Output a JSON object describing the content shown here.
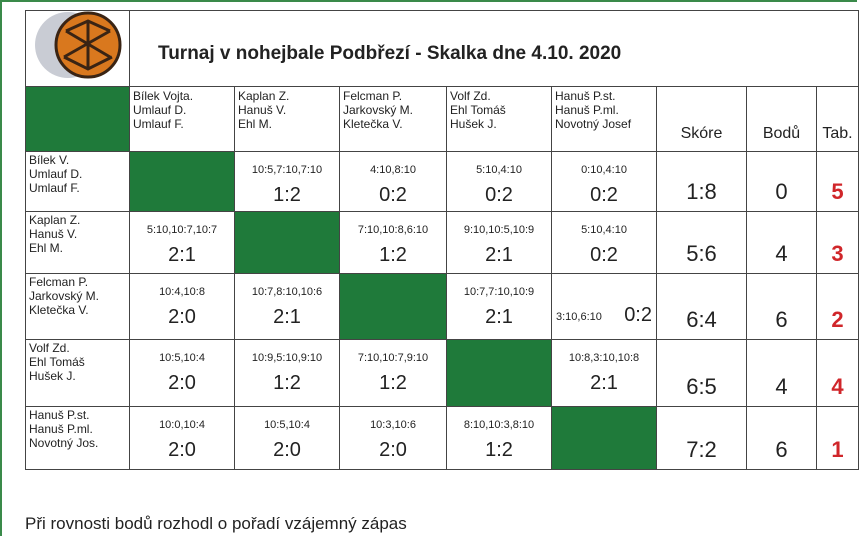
{
  "header": {
    "title": "Turnaj v nohejbale Podbřezí - Skalka dne 4.10. 2020"
  },
  "table": {
    "columns": [
      {
        "lines": [
          "Bílek Vojta.",
          "Umlauf D.",
          "Umlauf F."
        ]
      },
      {
        "lines": [
          "Kaplan Z.",
          "Hanuš V.",
          "Ehl M."
        ]
      },
      {
        "lines": [
          "Felcman P.",
          "Jarkovský M.",
          "Kletečka V."
        ]
      },
      {
        "lines": [
          "Volf Zd.",
          "Ehl Tomáš",
          "Hušek J."
        ]
      },
      {
        "lines": [
          "Hanuš P.st.",
          "Hanuš P.ml.",
          "Novotný Josef"
        ]
      }
    ],
    "summary_headers": [
      "Skóre",
      "Bodů",
      "Tab."
    ],
    "rows": [
      {
        "lines": [
          "Bílek V.",
          "Umlauf D.",
          "Umlauf F."
        ],
        "cells": [
          null,
          {
            "sets": "10:5,7:10,7:10",
            "result": "1:2"
          },
          {
            "sets": "4:10,8:10",
            "result": "0:2"
          },
          {
            "sets": "5:10,4:10",
            "result": "0:2"
          },
          {
            "sets": "0:10,4:10",
            "result": "0:2"
          }
        ],
        "score": "1:8",
        "points": 0,
        "rank": 5
      },
      {
        "lines": [
          "Kaplan Z.",
          "Hanuš V.",
          "Ehl M."
        ],
        "cells": [
          {
            "sets": "5:10,10:7,10:7",
            "result": "2:1"
          },
          null,
          {
            "sets": "7:10,10:8,6:10",
            "result": "1:2"
          },
          {
            "sets": "9:10,10:5,10:9",
            "result": "2:1"
          },
          {
            "sets": "5:10,4:10",
            "result": "0:2"
          }
        ],
        "score": "5:6",
        "points": 4,
        "rank": 3
      },
      {
        "lines": [
          "Felcman P.",
          "Jarkovský M.",
          "Kletečka V."
        ],
        "cells": [
          {
            "sets": "10:4,10:8",
            "result": "2:0"
          },
          {
            "sets": "10:7,8:10,10:6",
            "result": "2:1"
          },
          null,
          {
            "sets": "10:7,7:10,10:9",
            "result": "2:1"
          },
          {
            "sets": "3:10,6:10",
            "result": "0:2",
            "inline": true
          }
        ],
        "score": "6:4",
        "points": 6,
        "rank": 2
      },
      {
        "lines": [
          "Volf Zd.",
          "Ehl Tomáš",
          "Hušek J."
        ],
        "cells": [
          {
            "sets": "10:5,10:4",
            "result": "2:0"
          },
          {
            "sets": "10:9,5:10,9:10",
            "result": "1:2"
          },
          {
            "sets": "7:10,10:7,9:10",
            "result": "1:2"
          },
          null,
          {
            "sets": "10:8,3:10,10:8",
            "result": "2:1"
          }
        ],
        "score": "6:5",
        "points": 4,
        "rank": 4
      },
      {
        "lines": [
          "Hanuš P.st.",
          "Hanuš P.ml.",
          "Novotný Jos."
        ],
        "cells": [
          {
            "sets": "10:0,10:4",
            "result": "2:0"
          },
          {
            "sets": "10:5,10:4",
            "result": "2:0"
          },
          {
            "sets": "10:3,10:6",
            "result": "2:0"
          },
          {
            "sets": "8:10,10:3,8:10",
            "result": "1:2"
          },
          null
        ],
        "score": "7:2",
        "points": 6,
        "rank": 1
      }
    ]
  },
  "footer": {
    "note": "Při rovnosti bodů rozhodl o pořadí vzájemný zápas"
  }
}
